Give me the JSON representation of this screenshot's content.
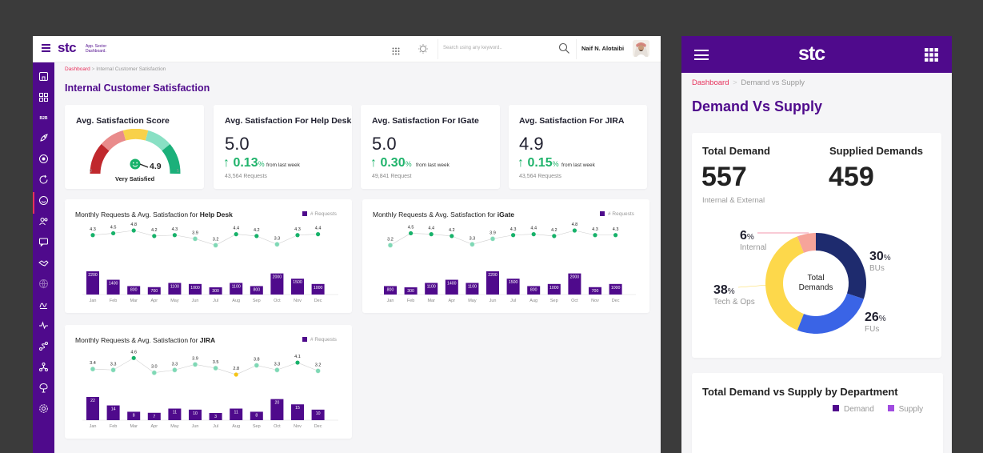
{
  "colors": {
    "brand": "#4f0a8c",
    "accent": "#e8315b",
    "positive": "#1fb36b",
    "gauge_dot": "#17b26a"
  },
  "desktop": {
    "header": {
      "logo": "stc",
      "app_line1": "App. Sector",
      "app_line2": "Dashboard.",
      "search_placeholder": "Search using any keyword..",
      "user_name": "Naif N. Alotaibi"
    },
    "sidebar": {
      "items": [
        "home-icon",
        "grid-icon",
        "b2b-label",
        "rocket-icon",
        "target-icon",
        "refresh-icon",
        "smile-icon",
        "users-icon",
        "chat-icon",
        "handshake-icon",
        "globe-icon",
        "signature-icon",
        "pulse-icon",
        "route-icon",
        "network-icon",
        "tree-icon",
        "settings-icon"
      ],
      "b2b_text": "B2B"
    },
    "breadcrumb": {
      "root": "Dashboard",
      "sep": ">",
      "current": "Internal  Customer Satisfaction"
    },
    "page_title": "Internal Customer Satisfaction",
    "kpis": {
      "avg": {
        "title": "Avg. Satisfaction Score",
        "score": "4.9",
        "label": "Very Satisfied",
        "min": "0",
        "max": "5",
        "value": 4.9
      },
      "helpdesk": {
        "title": "Avg. Satisfaction For Help Desk",
        "value": "5.0",
        "change": "0.13",
        "pct": "%",
        "from": "from last week",
        "requests": "43,564 Requests"
      },
      "igate": {
        "title": "Avg. Satisfaction For IGate",
        "value": "5.0",
        "change": "0.30",
        "pct": "%",
        "from": "from last week",
        "requests": "49,841 Request"
      },
      "jira": {
        "title": "Avg. Satisfaction For JIRA",
        "value": "4.9",
        "change": "0.15",
        "pct": "%",
        "from": "from last week",
        "requests": "43,564 Requests"
      }
    },
    "charts": {
      "helpdesk": {
        "title_prefix": "Monthly Requests & Avg. Satisfaction for ",
        "title_bold": "Help Desk",
        "legend": "# Requests"
      },
      "igate": {
        "title_prefix": "Monthly Requests & Avg. Satisfaction for ",
        "title_bold": "iGate",
        "legend": "# Requests"
      },
      "jira": {
        "title_prefix": "Monthly Requests & Avg. Satisfaction for ",
        "title_bold": "JIRA",
        "legend": "# Requests"
      }
    }
  },
  "chart_data": [
    {
      "type": "bar",
      "title": "Monthly Requests & Avg. Satisfaction for Help Desk",
      "categories": [
        "Jan",
        "Feb",
        "Mar",
        "Apr",
        "May",
        "Jun",
        "Jul",
        "Aug",
        "Sep",
        "Oct",
        "Nov",
        "Dec"
      ],
      "series": [
        {
          "name": "# Requests",
          "values": [
            2200,
            1400,
            800,
            700,
            1100,
            1000,
            300,
            1100,
            800,
            2000,
            1500,
            1000
          ]
        },
        {
          "values": [
            4.3,
            4.5,
            4.8,
            4.2,
            4.3,
            3.9,
            3.2,
            4.4,
            4.2,
            3.3,
            4.3,
            4.4
          ]
        }
      ]
    },
    {
      "type": "bar",
      "title": "Monthly Requests & Avg. Satisfaction for iGate",
      "categories": [
        "Jan",
        "Feb",
        "Mar",
        "Apr",
        "May",
        "Jun",
        "Jul",
        "Aug",
        "Sep",
        "Oct",
        "Nov",
        "Dec"
      ],
      "series": [
        {
          "name": "# Requests",
          "values": [
            800,
            300,
            1100,
            1400,
            1100,
            2200,
            1500,
            800,
            1000,
            2000,
            700,
            1000
          ]
        },
        {
          "values": [
            3.2,
            4.5,
            4.4,
            4.2,
            3.3,
            3.9,
            4.3,
            4.4,
            4.2,
            4.8,
            4.3,
            4.3
          ]
        }
      ]
    },
    {
      "type": "bar",
      "title": "Monthly Requests & Avg. Satisfaction for JIRA",
      "categories": [
        "Jan",
        "Feb",
        "Mar",
        "Apr",
        "May",
        "Jun",
        "Jul",
        "Aug",
        "Sep",
        "Oct",
        "Nov",
        "Dec"
      ],
      "series": [
        {
          "name": "# Requests",
          "values": [
            22,
            14,
            8,
            7,
            11,
            10,
            3,
            11,
            8,
            20,
            15,
            10
          ]
        },
        {
          "values": [
            3.4,
            3.3,
            4.6,
            3.0,
            3.3,
            3.9,
            3.5,
            2.8,
            3.8,
            3.3,
            4.1,
            3.2
          ]
        }
      ]
    },
    {
      "type": "pie",
      "title": "Total Demands",
      "categories": [
        "BUs",
        "FUs",
        "Tech & Ops",
        "Internal"
      ],
      "values": [
        30,
        26,
        38,
        6
      ]
    }
  ],
  "mobile": {
    "logo": "stc",
    "breadcrumb": {
      "root": "Dashboard",
      "sep": ">",
      "current": "Demand vs Supply"
    },
    "page_title": "Demand Vs Supply",
    "total_demand_label": "Total Demand",
    "total_demand": "557",
    "total_demand_sub": "Internal & External",
    "supplied_label": "Supplied Demands",
    "supplied": "459",
    "donut_center_1": "Total",
    "donut_center_2": "Demands",
    "segments": [
      {
        "pct": "30",
        "unit": "%",
        "label": "BUs"
      },
      {
        "pct": "26",
        "unit": "%",
        "label": "FUs"
      },
      {
        "pct": "38",
        "unit": "%",
        "label": "Tech & Ops"
      },
      {
        "pct": "6",
        "unit": "%",
        "label": "Internal"
      }
    ],
    "dept_title": "Total Demand vs Supply by Department",
    "legend_demand": "Demand",
    "legend_supply": "Supply"
  }
}
